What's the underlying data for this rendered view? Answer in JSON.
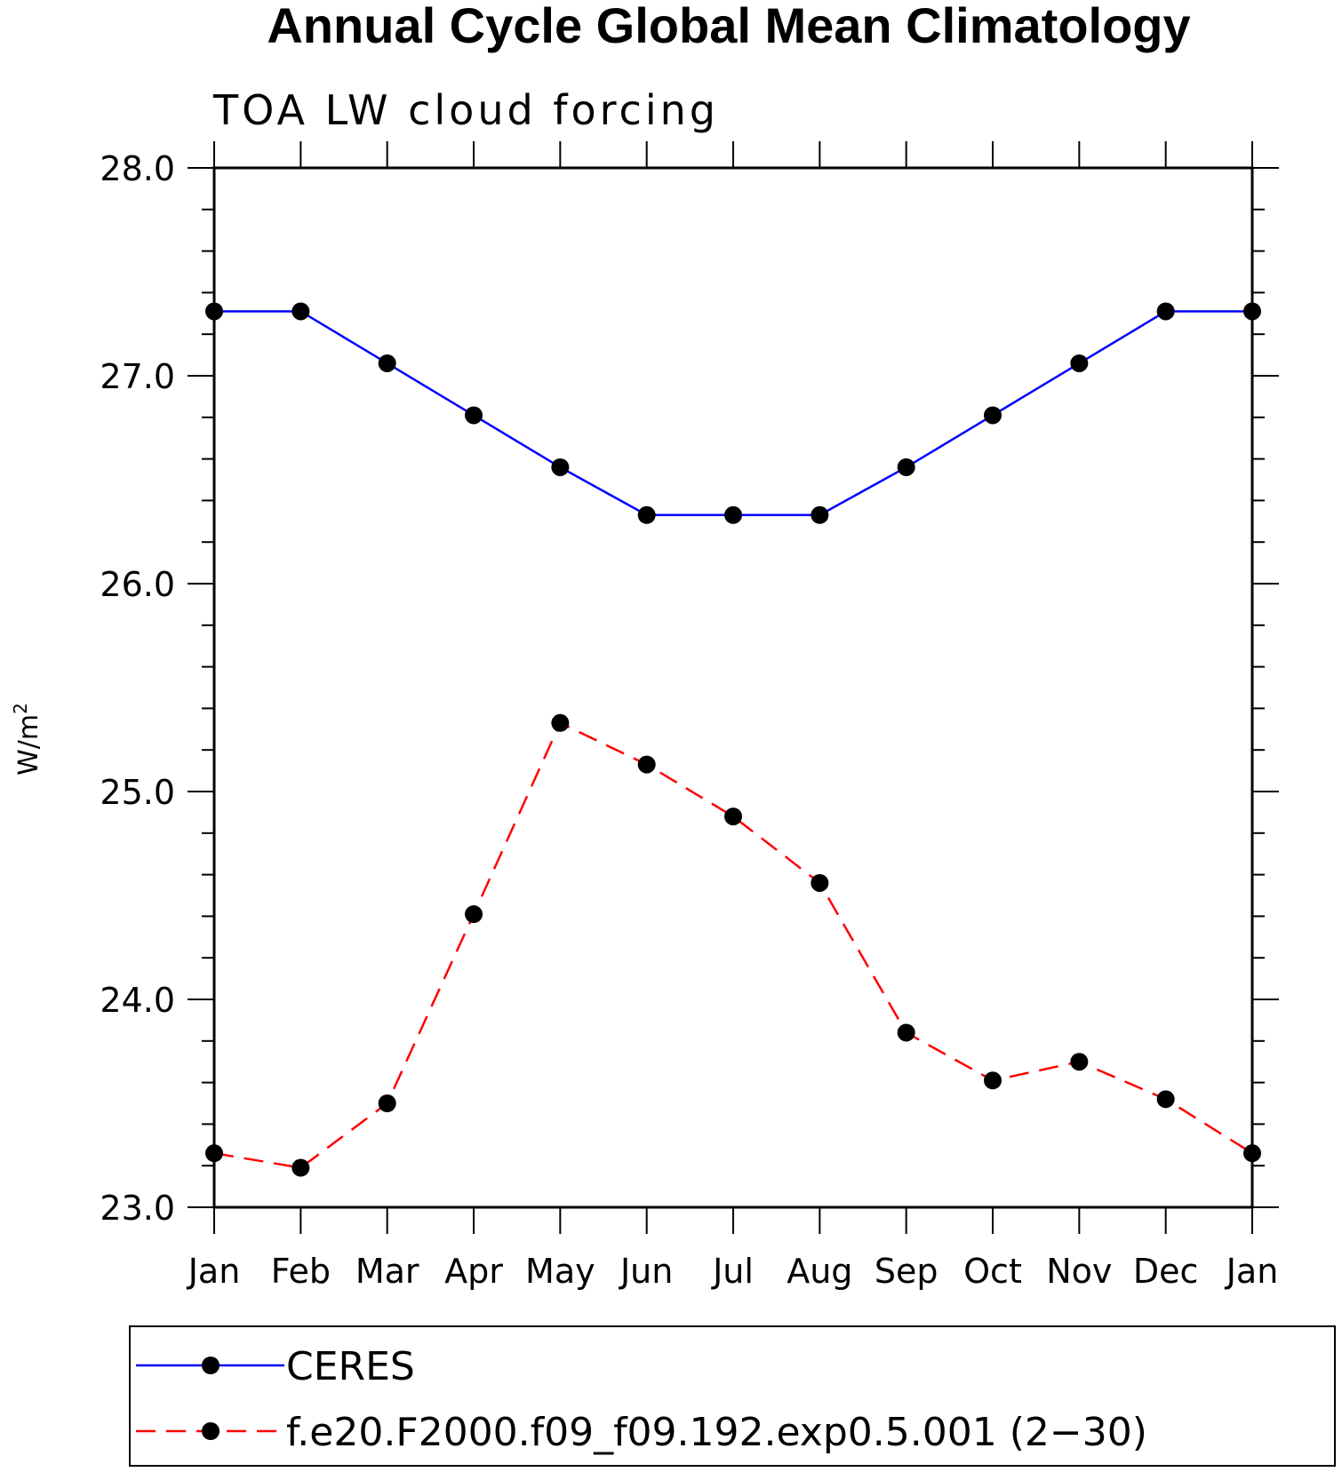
{
  "chart_data": {
    "type": "line",
    "title": "Annual Cycle Global Mean Climatology",
    "subtitle": "TOA LW cloud forcing",
    "ylabel": "W/m",
    "ylabel_sup": "2",
    "xlabel": "",
    "categories": [
      "Jan",
      "Feb",
      "Mar",
      "Apr",
      "May",
      "Jun",
      "Jul",
      "Aug",
      "Sep",
      "Oct",
      "Nov",
      "Dec",
      "Jan"
    ],
    "ylim": [
      23.0,
      28.0
    ],
    "yticks": [
      "23.0",
      "24.0",
      "25.0",
      "26.0",
      "27.0",
      "28.0"
    ],
    "grid": false,
    "legend_position": "bottom",
    "series": [
      {
        "name": "CERES",
        "color": "#0000ff",
        "style": "solid",
        "values": [
          27.31,
          27.31,
          27.06,
          26.81,
          26.56,
          26.33,
          26.33,
          26.33,
          26.56,
          26.81,
          27.06,
          27.31,
          27.31
        ]
      },
      {
        "name": "f.e20.F2000.f09_f09.192.exp0.5.001 (2−30)",
        "color": "#ff0000",
        "style": "dashed",
        "values": [
          23.26,
          23.19,
          23.5,
          24.41,
          25.33,
          25.13,
          24.88,
          24.56,
          23.84,
          23.61,
          23.7,
          23.52,
          23.26
        ]
      }
    ]
  }
}
